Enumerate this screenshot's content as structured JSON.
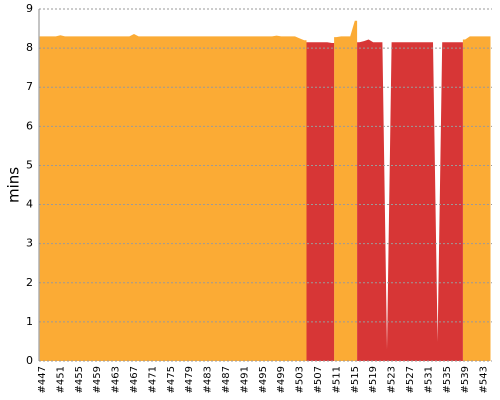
{
  "chart_data": {
    "type": "area",
    "y_label": "mins",
    "categories": [
      "#447",
      null,
      null,
      null,
      "#451",
      null,
      null,
      null,
      "#455",
      null,
      null,
      null,
      "#459",
      null,
      null,
      null,
      "#463",
      null,
      null,
      null,
      "#467",
      null,
      null,
      null,
      "#471",
      null,
      null,
      null,
      "#475",
      null,
      null,
      null,
      "#479",
      null,
      null,
      null,
      "#483",
      null,
      null,
      null,
      "#487",
      null,
      null,
      null,
      "#491",
      null,
      null,
      null,
      "#495",
      null,
      null,
      null,
      "#499",
      null,
      null,
      null,
      "#503",
      null,
      null,
      null,
      "#507",
      null,
      null,
      null,
      "#511",
      null,
      null,
      null,
      "#515",
      null,
      null,
      null,
      "#519",
      null,
      null,
      null,
      "#523",
      null,
      null,
      null,
      "#527",
      null,
      null,
      null,
      "#531",
      null,
      null,
      null,
      "#535",
      null,
      null,
      null,
      "#539",
      null,
      null,
      null,
      "#543",
      null
    ],
    "series": [
      {
        "color": "#fbab35",
        "values": [
          8.3,
          8.3,
          8.3,
          8.3,
          8.33,
          8.3,
          8.3,
          8.3,
          8.3,
          8.3,
          8.3,
          8.3,
          8.3,
          8.3,
          8.3,
          8.3,
          8.3,
          8.3,
          8.3,
          8.3,
          8.36,
          8.3,
          8.3,
          8.3,
          8.3,
          8.3,
          8.3,
          8.3,
          8.3,
          8.3,
          8.3,
          8.3,
          8.3,
          8.3,
          8.3,
          8.3,
          8.3,
          8.3,
          8.3,
          8.3,
          8.3,
          8.3,
          8.3,
          8.3,
          8.3,
          8.3,
          8.3,
          8.3,
          8.3,
          8.3,
          8.3,
          8.32,
          8.3,
          8.3,
          8.3,
          8.3,
          8.25,
          8.2,
          null,
          null,
          null,
          null,
          null,
          null,
          8.28,
          8.3,
          8.3,
          8.3,
          8.7,
          null,
          null,
          null,
          null,
          null,
          null,
          null,
          null,
          null,
          null,
          null,
          null,
          null,
          null,
          null,
          null,
          null,
          null,
          null,
          null,
          null,
          null,
          null,
          8.22,
          8.3,
          8.3,
          8.3,
          8.3,
          8.3
        ]
      },
      {
        "color": "#d73636",
        "values": [
          null,
          null,
          null,
          null,
          null,
          null,
          null,
          null,
          null,
          null,
          null,
          null,
          null,
          null,
          null,
          null,
          null,
          null,
          null,
          null,
          null,
          null,
          null,
          null,
          null,
          null,
          null,
          null,
          null,
          null,
          null,
          null,
          null,
          null,
          null,
          null,
          null,
          null,
          null,
          null,
          null,
          null,
          null,
          null,
          null,
          null,
          null,
          null,
          null,
          null,
          null,
          null,
          null,
          null,
          null,
          null,
          null,
          null,
          8.15,
          8.15,
          8.15,
          8.15,
          8.15,
          8.13,
          null,
          null,
          null,
          null,
          null,
          8.15,
          8.18,
          8.22,
          8.15,
          8.15,
          8.15,
          0.3,
          8.15,
          8.15,
          8.15,
          8.15,
          8.15,
          8.15,
          8.15,
          8.15,
          8.15,
          8.15,
          0.5,
          8.15,
          8.15,
          8.15,
          8.15,
          8.15,
          null,
          null,
          null,
          null,
          null,
          null
        ]
      }
    ],
    "ylim": [
      0,
      9
    ],
    "yticks": [
      0,
      1,
      2,
      3,
      4,
      5,
      6,
      7,
      8,
      9
    ],
    "grid": true
  }
}
